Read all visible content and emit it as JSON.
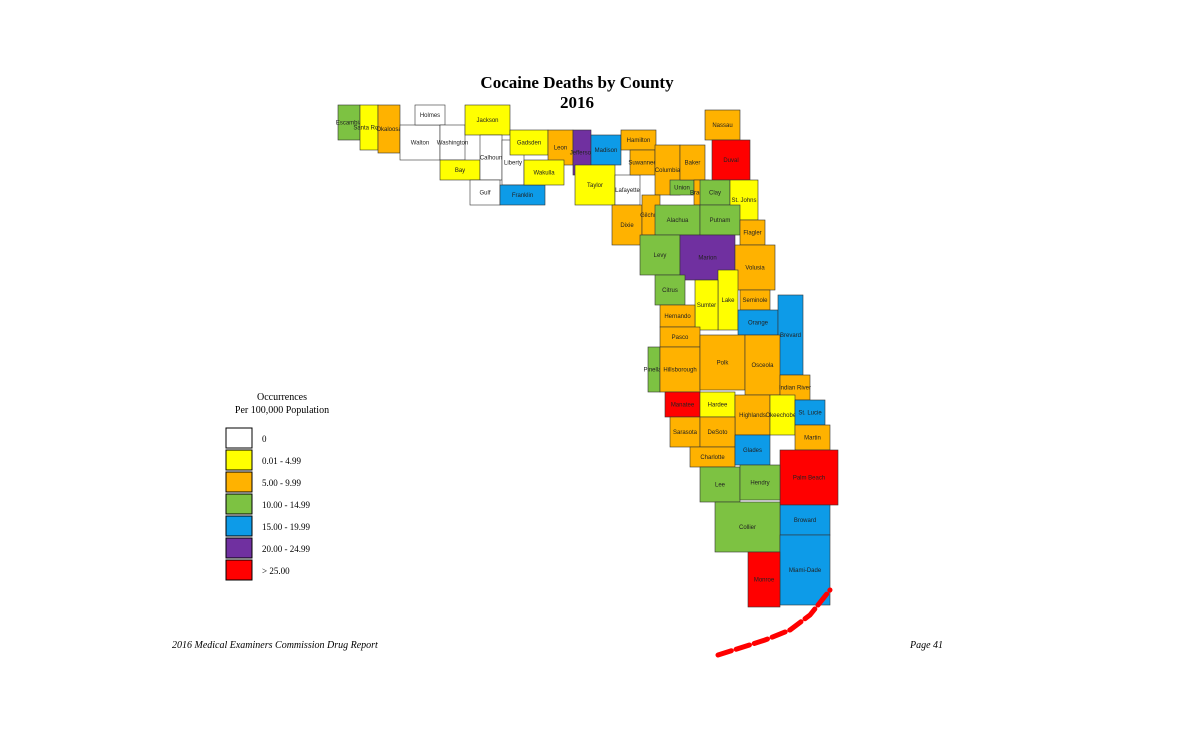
{
  "title": "Cocaine Deaths by County",
  "subtitle": "2016",
  "legend": {
    "title": [
      "Occurrences",
      "Per 100,000 Population"
    ],
    "items": [
      {
        "label": "0",
        "color": "#ffffff"
      },
      {
        "label": "0.01 - 4.99",
        "color": "#ffff00"
      },
      {
        "label": "5.00 - 9.99",
        "color": "#ffb200"
      },
      {
        "label": "10.00 - 14.99",
        "color": "#7dc242"
      },
      {
        "label": "15.00 - 19.99",
        "color": "#0d9be8"
      },
      {
        "label": "20.00 - 24.99",
        "color": "#7030a0"
      },
      {
        "label": "> 25.00",
        "color": "#ff0000"
      }
    ]
  },
  "counties": [
    {
      "name": "Escambia",
      "class": 3
    },
    {
      "name": "Santa Rosa",
      "class": 1
    },
    {
      "name": "Okaloosa",
      "class": 2
    },
    {
      "name": "Walton",
      "class": 0
    },
    {
      "name": "Holmes",
      "class": 0
    },
    {
      "name": "Washington",
      "class": 0
    },
    {
      "name": "Jackson",
      "class": 1
    },
    {
      "name": "Bay",
      "class": 1
    },
    {
      "name": "Calhoun",
      "class": 0
    },
    {
      "name": "Gulf",
      "class": 0
    },
    {
      "name": "Liberty",
      "class": 0
    },
    {
      "name": "Gadsden",
      "class": 1
    },
    {
      "name": "Franklin",
      "class": 4
    },
    {
      "name": "Leon",
      "class": 2
    },
    {
      "name": "Wakulla",
      "class": 1
    },
    {
      "name": "Jefferson",
      "class": 5
    },
    {
      "name": "Madison",
      "class": 4
    },
    {
      "name": "Taylor",
      "class": 1
    },
    {
      "name": "Hamilton",
      "class": 2
    },
    {
      "name": "Lafayette",
      "class": 0
    },
    {
      "name": "Suwannee",
      "class": 2
    },
    {
      "name": "Columbia",
      "class": 2
    },
    {
      "name": "Dixie",
      "class": 2
    },
    {
      "name": "Gilchrist",
      "class": 2
    },
    {
      "name": "Union",
      "class": 3
    },
    {
      "name": "Baker",
      "class": 2
    },
    {
      "name": "Bradford",
      "class": 2
    },
    {
      "name": "Nassau",
      "class": 2
    },
    {
      "name": "Duval",
      "class": 6
    },
    {
      "name": "Clay",
      "class": 3
    },
    {
      "name": "St. Johns",
      "class": 1
    },
    {
      "name": "Alachua",
      "class": 3
    },
    {
      "name": "Putnam",
      "class": 3
    },
    {
      "name": "Flagler",
      "class": 2
    },
    {
      "name": "Levy",
      "class": 3
    },
    {
      "name": "Marion",
      "class": 5
    },
    {
      "name": "Volusia",
      "class": 2
    },
    {
      "name": "Citrus",
      "class": 3
    },
    {
      "name": "Lake",
      "class": 1
    },
    {
      "name": "Sumter",
      "class": 1
    },
    {
      "name": "Seminole",
      "class": 2
    },
    {
      "name": "Hernando",
      "class": 2
    },
    {
      "name": "Orange",
      "class": 4
    },
    {
      "name": "Brevard",
      "class": 4
    },
    {
      "name": "Pasco",
      "class": 2
    },
    {
      "name": "Pinellas",
      "class": 3
    },
    {
      "name": "Hillsborough",
      "class": 2
    },
    {
      "name": "Polk",
      "class": 2
    },
    {
      "name": "Osceola",
      "class": 2
    },
    {
      "name": "Indian River",
      "class": 2
    },
    {
      "name": "Manatee",
      "class": 6
    },
    {
      "name": "Hardee",
      "class": 1
    },
    {
      "name": "Highlands",
      "class": 2
    },
    {
      "name": "Okeechobee",
      "class": 1
    },
    {
      "name": "St. Lucie",
      "class": 4
    },
    {
      "name": "Sarasota",
      "class": 2
    },
    {
      "name": "DeSoto",
      "class": 2
    },
    {
      "name": "Martin",
      "class": 2
    },
    {
      "name": "Charlotte",
      "class": 2
    },
    {
      "name": "Glades",
      "class": 4
    },
    {
      "name": "Palm Beach",
      "class": 6
    },
    {
      "name": "Lee",
      "class": 3
    },
    {
      "name": "Hendry",
      "class": 3
    },
    {
      "name": "Broward",
      "class": 4
    },
    {
      "name": "Collier",
      "class": 3
    },
    {
      "name": "Miami-Dade",
      "class": 4
    },
    {
      "name": "Monroe",
      "class": 6
    }
  ],
  "footer": {
    "left": "2016 Medical Examiners Commission Drug Report",
    "right": "Page 41"
  }
}
